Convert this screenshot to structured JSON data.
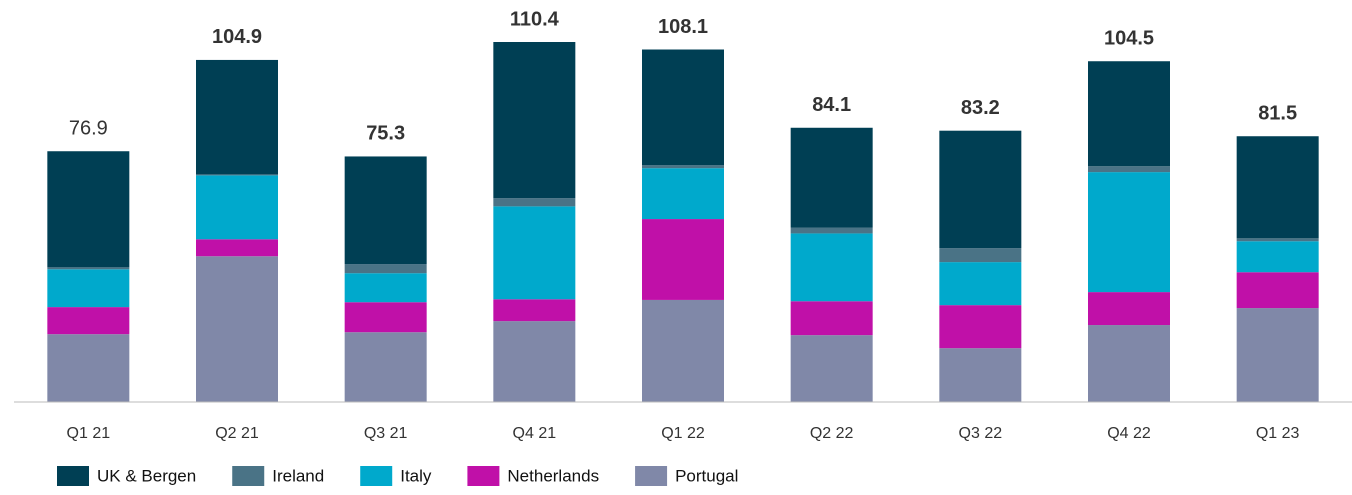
{
  "chart_data": {
    "type": "stacked_bar",
    "categories": [
      "Q1 21",
      "Q2 21",
      "Q3 21",
      "Q4 21",
      "Q1 22",
      "Q2 22",
      "Q3 22",
      "Q4 22",
      "Q1 23"
    ],
    "totals": [
      76.9,
      104.9,
      75.3,
      110.4,
      108.1,
      84.1,
      83.2,
      104.5,
      81.5
    ],
    "totals_bold": [
      false,
      true,
      true,
      true,
      true,
      true,
      true,
      true,
      true
    ],
    "series": [
      {
        "name": "Portugal",
        "color": "#8088a8",
        "values": [
          20.8,
          44.7,
          21.4,
          24.8,
          31.3,
          20.5,
          16.5,
          23.6,
          28.8
        ]
      },
      {
        "name": "Netherlands",
        "color": "#c010a8",
        "values": [
          8.3,
          5.2,
          9.2,
          6.7,
          24.8,
          10.4,
          13.2,
          10.1,
          11.0
        ]
      },
      {
        "name": "Italy",
        "color": "#00a9cc",
        "values": [
          11.6,
          19.6,
          8.9,
          28.5,
          15.6,
          20.8,
          13.2,
          36.8,
          9.5
        ]
      },
      {
        "name": "Ireland",
        "color": "#4a7386",
        "values": [
          0.6,
          0.3,
          2.8,
          2.5,
          0.9,
          1.8,
          4.3,
          1.8,
          0.9
        ]
      },
      {
        "name": "UK & Bergen",
        "color": "#003f54",
        "values": [
          35.6,
          35.1,
          33.0,
          47.9,
          35.5,
          30.6,
          36.0,
          32.2,
          31.3
        ]
      }
    ],
    "legend_order": [
      4,
      3,
      2,
      1,
      0
    ]
  }
}
